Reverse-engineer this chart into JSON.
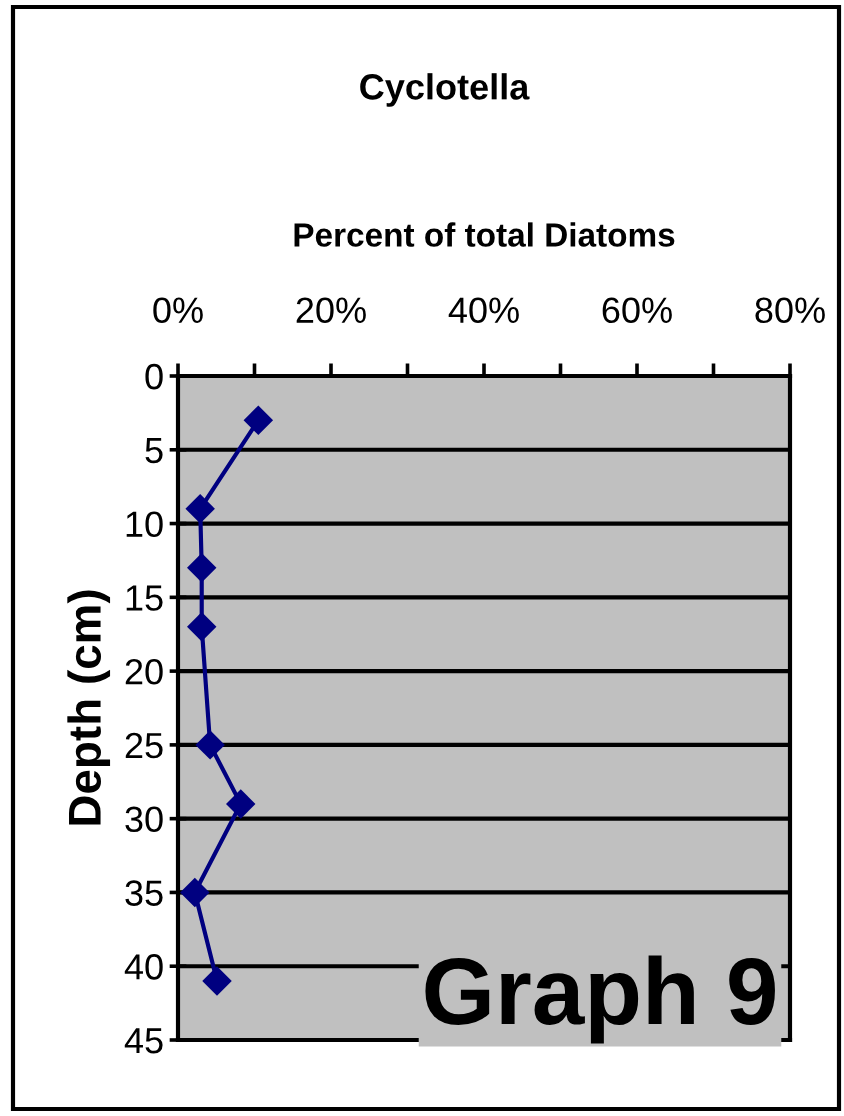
{
  "chart_data": {
    "type": "line",
    "title": "Cyclotella",
    "xlabel": "Percent of total Diatoms",
    "ylabel": "Depth (cm)",
    "annotations": [
      "Graph 9"
    ],
    "series": [
      {
        "color": "#000080",
        "x": [
          10.5,
          2.9,
          3.1,
          3.1,
          4.2,
          8.2,
          2.2,
          5.1
        ],
        "values": [
          3,
          9,
          13,
          17,
          25,
          29,
          35,
          41
        ]
      }
    ],
    "xlim": [
      0,
      80
    ],
    "xticks": [
      {
        "value": 0,
        "label": "0%"
      },
      {
        "value": 10,
        "label": null
      },
      {
        "value": 20,
        "label": "20%"
      },
      {
        "value": 30,
        "label": null
      },
      {
        "value": 40,
        "label": "40%"
      },
      {
        "value": 50,
        "label": null
      },
      {
        "value": 60,
        "label": "60%"
      },
      {
        "value": 70,
        "label": null
      },
      {
        "value": 80,
        "label": "80%"
      }
    ],
    "ylim": [
      45,
      0
    ],
    "yticks": [
      0,
      5,
      10,
      15,
      20,
      25,
      30,
      35,
      40,
      45
    ],
    "grid": "y",
    "marker": "diamond",
    "line_style": "solid"
  }
}
